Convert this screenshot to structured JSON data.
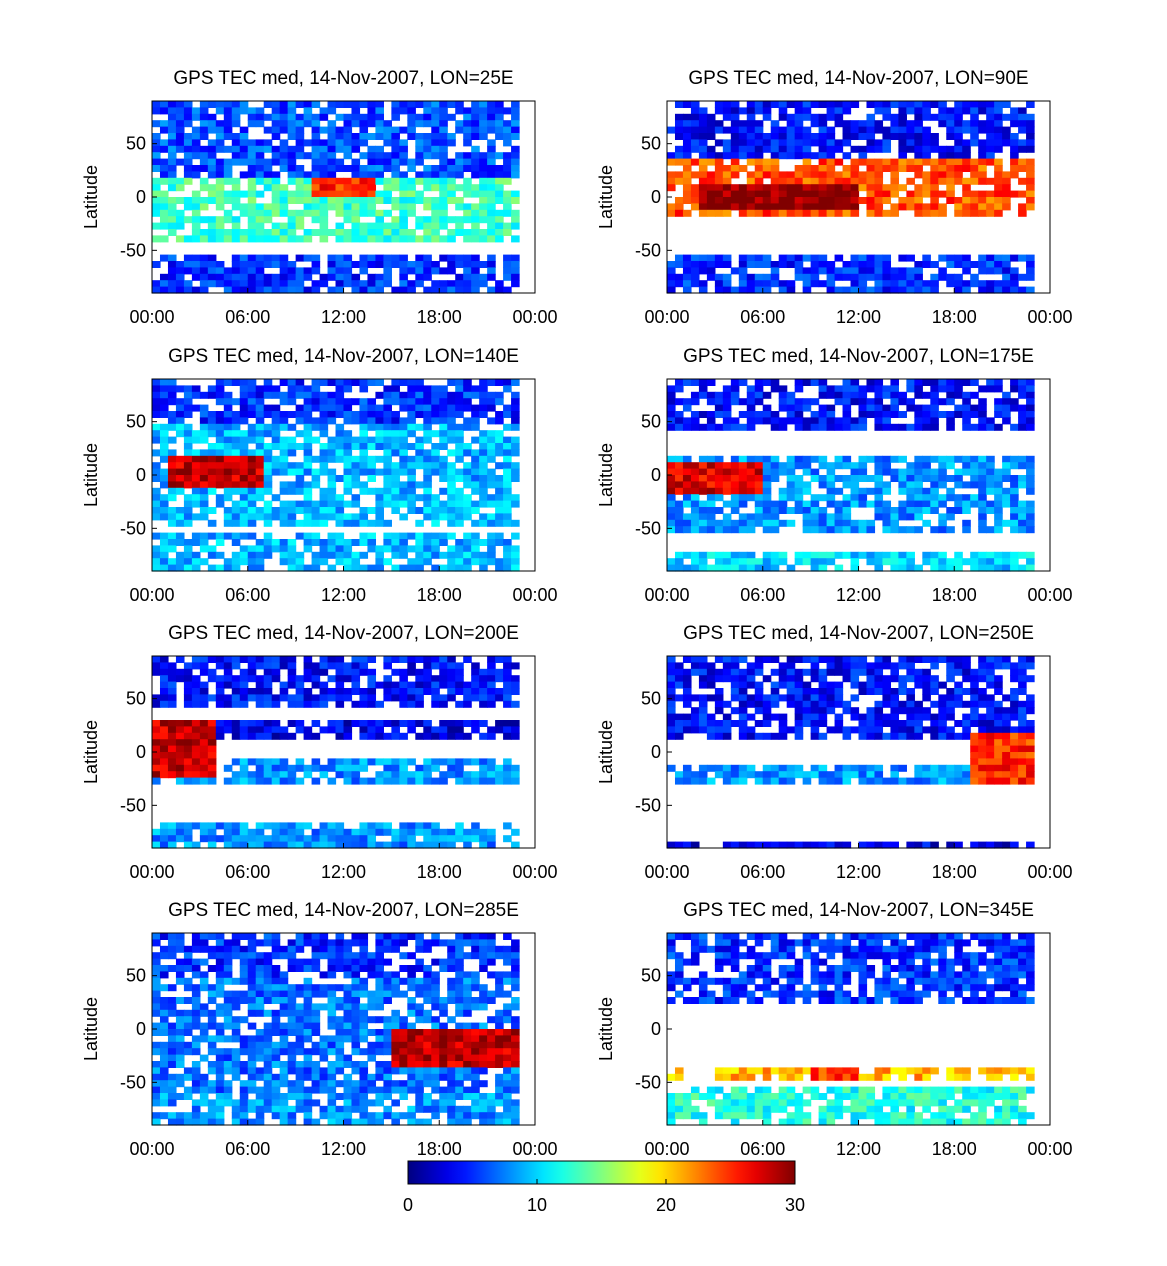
{
  "chart_data": [
    {
      "type": "heatmap",
      "title": "GPS TEC med, 14-Nov-2007, LON=25E",
      "ylabel": "Latitude",
      "xticks": [
        "00:00",
        "06:00",
        "12:00",
        "18:00",
        "00:00"
      ],
      "yticks": [
        "50",
        "0",
        "-50"
      ],
      "ylim": [
        -90,
        90
      ],
      "summary": [
        {
          "lat_range": [
            60,
            90
          ],
          "tec": 6
        },
        {
          "lat_range": [
            20,
            60
          ],
          "tec": 6
        },
        {
          "lat_range": [
            -40,
            20
          ],
          "tec": 13
        },
        {
          "lat_range": [
            -90,
            -55
          ],
          "tec": 5
        }
      ],
      "peak": {
        "time_range": [
          "10:00",
          "14:00"
        ],
        "lat_range": [
          0,
          20
        ],
        "tec": 25
      }
    },
    {
      "type": "heatmap",
      "title": "GPS TEC med, 14-Nov-2007, LON=90E",
      "ylabel": "Latitude",
      "xticks": [
        "00:00",
        "06:00",
        "12:00",
        "18:00",
        "00:00"
      ],
      "yticks": [
        "50",
        "0",
        "-50"
      ],
      "ylim": [
        -90,
        90
      ],
      "summary": [
        {
          "lat_range": [
            35,
            90
          ],
          "tec": 4
        },
        {
          "lat_range": [
            -20,
            35
          ],
          "tec": 24
        },
        {
          "lat_range": [
            -90,
            -55
          ],
          "tec": 5
        }
      ],
      "peak": {
        "time_range": [
          "02:00",
          "12:00"
        ],
        "lat_range": [
          -10,
          10
        ],
        "tec": 30
      }
    },
    {
      "type": "heatmap",
      "title": "GPS TEC med, 14-Nov-2007, LON=140E",
      "ylabel": "Latitude",
      "xticks": [
        "00:00",
        "06:00",
        "12:00",
        "18:00",
        "00:00"
      ],
      "yticks": [
        "50",
        "0",
        "-50"
      ],
      "ylim": [
        -90,
        90
      ],
      "summary": [
        {
          "lat_range": [
            50,
            90
          ],
          "tec": 5
        },
        {
          "lat_range": [
            -50,
            50
          ],
          "tec": 9
        },
        {
          "lat_range": [
            -90,
            -55
          ],
          "tec": 9
        }
      ],
      "peak": {
        "time_range": [
          "01:00",
          "07:00"
        ],
        "lat_range": [
          -10,
          20
        ],
        "tec": 28
      }
    },
    {
      "type": "heatmap",
      "title": "GPS TEC med, 14-Nov-2007, LON=175E",
      "ylabel": "Latitude",
      "xticks": [
        "00:00",
        "06:00",
        "12:00",
        "18:00",
        "00:00"
      ],
      "yticks": [
        "50",
        "0",
        "-50"
      ],
      "ylim": [
        -90,
        90
      ],
      "summary": [
        {
          "lat_range": [
            45,
            90
          ],
          "tec": 4
        },
        {
          "lat_range": [
            -55,
            20
          ],
          "tec": 8
        },
        {
          "lat_range": [
            -90,
            -70
          ],
          "tec": 10
        }
      ],
      "peak": {
        "time_range": [
          "00:00",
          "06:00"
        ],
        "lat_range": [
          -15,
          10
        ],
        "tec": 27
      }
    },
    {
      "type": "heatmap",
      "title": "GPS TEC med, 14-Nov-2007, LON=200E",
      "ylabel": "Latitude",
      "xticks": [
        "00:00",
        "06:00",
        "12:00",
        "18:00",
        "00:00"
      ],
      "yticks": [
        "50",
        "0",
        "-50"
      ],
      "ylim": [
        -90,
        90
      ],
      "summary": [
        {
          "lat_range": [
            40,
            90
          ],
          "tec": 4
        },
        {
          "lat_range": [
            10,
            30
          ],
          "tec": 3
        },
        {
          "lat_range": [
            -30,
            -5
          ],
          "tec": 8
        },
        {
          "lat_range": [
            -90,
            -65
          ],
          "tec": 8
        }
      ],
      "peak": {
        "time_range": [
          "00:00",
          "04:00"
        ],
        "lat_range": [
          -25,
          30
        ],
        "tec": 28
      }
    },
    {
      "type": "heatmap",
      "title": "GPS TEC med, 14-Nov-2007, LON=250E",
      "ylabel": "Latitude",
      "xticks": [
        "00:00",
        "06:00",
        "12:00",
        "18:00",
        "00:00"
      ],
      "yticks": [
        "50",
        "0",
        "-50"
      ],
      "ylim": [
        -90,
        90
      ],
      "summary": [
        {
          "lat_range": [
            10,
            90
          ],
          "tec": 4
        },
        {
          "lat_range": [
            -30,
            -15
          ],
          "tec": 8
        },
        {
          "lat_range": [
            -90,
            -85
          ],
          "tec": 3
        }
      ],
      "peak": {
        "time_range": [
          "19:00",
          "23:00"
        ],
        "lat_range": [
          -30,
          15
        ],
        "tec": 25
      }
    },
    {
      "type": "heatmap",
      "title": "GPS TEC med, 14-Nov-2007, LON=285E",
      "ylabel": "Latitude",
      "xticks": [
        "00:00",
        "06:00",
        "12:00",
        "18:00",
        "00:00"
      ],
      "yticks": [
        "50",
        "0",
        "-50"
      ],
      "ylim": [
        -90,
        90
      ],
      "summary": [
        {
          "lat_range": [
            50,
            90
          ],
          "tec": 5
        },
        {
          "lat_range": [
            -60,
            50
          ],
          "tec": 7
        },
        {
          "lat_range": [
            -90,
            -60
          ],
          "tec": 8
        }
      ],
      "peak": {
        "time_range": [
          "15:00",
          "23:00"
        ],
        "lat_range": [
          -35,
          0
        ],
        "tec": 28
      }
    },
    {
      "type": "heatmap",
      "title": "GPS TEC med, 14-Nov-2007, LON=345E",
      "ylabel": "Latitude",
      "xticks": [
        "00:00",
        "06:00",
        "12:00",
        "18:00",
        "00:00"
      ],
      "yticks": [
        "50",
        "0",
        "-50"
      ],
      "ylim": [
        -90,
        90
      ],
      "summary": [
        {
          "lat_range": [
            25,
            90
          ],
          "tec": 5
        },
        {
          "lat_range": [
            -45,
            -35
          ],
          "tec": 21
        },
        {
          "lat_range": [
            -90,
            -55
          ],
          "tec": 12
        }
      ],
      "peak": {
        "time_range": [
          "09:00",
          "12:00"
        ],
        "lat_range": [
          -45,
          -35
        ],
        "tec": 25
      }
    }
  ],
  "colorbar": {
    "ticks": [
      "0",
      "10",
      "20",
      "30"
    ],
    "range": [
      0,
      30
    ],
    "colormap": "jet"
  }
}
